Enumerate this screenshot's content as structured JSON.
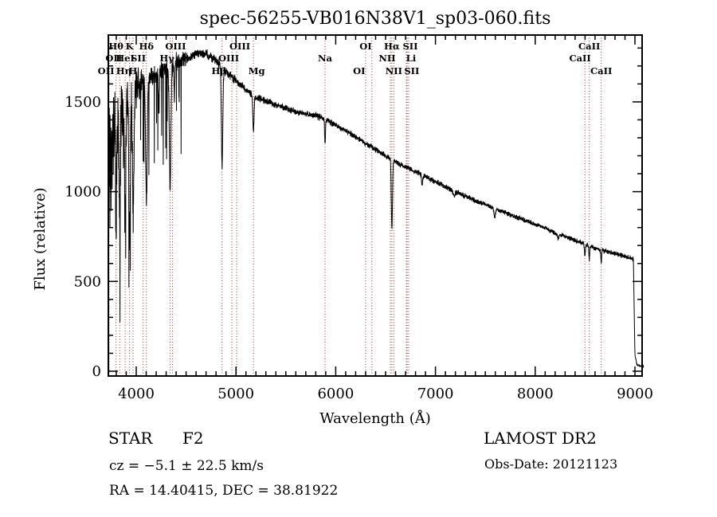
{
  "figure": {
    "background": "#ffffff",
    "frame_color": "#000000",
    "spectrum_color": "#000000",
    "marker_line_color": "#8b3a3a"
  },
  "chart_data": {
    "type": "line",
    "title": "spec-56255-VB016N38V1_sp03-060.fits",
    "xlabel": "Wavelength (Å)",
    "ylabel": "Flux (relative)",
    "xlim": [
      3720,
      9090
    ],
    "ylim": [
      0,
      1900
    ],
    "xticks": [
      4000,
      5000,
      6000,
      7000,
      8000,
      9000
    ],
    "yticks": [
      0,
      500,
      1000,
      1500
    ],
    "x_minor_step": 100,
    "y_minor_step": 100,
    "grid": false,
    "legend": "none",
    "series": [
      {
        "name": "LAMOST spectrum",
        "color": "#000000",
        "noise_seed": 42,
        "continuum_anchors": [
          [
            3722,
            1150
          ],
          [
            3760,
            1330
          ],
          [
            3800,
            1450
          ],
          [
            3850,
            1500
          ],
          [
            3900,
            1530
          ],
          [
            3950,
            1560
          ],
          [
            4000,
            1590
          ],
          [
            4100,
            1630
          ],
          [
            4200,
            1660
          ],
          [
            4300,
            1690
          ],
          [
            4400,
            1720
          ],
          [
            4500,
            1745
          ],
          [
            4600,
            1765
          ],
          [
            4700,
            1770
          ],
          [
            4800,
            1730
          ],
          [
            4900,
            1665
          ],
          [
            5000,
            1620
          ],
          [
            5100,
            1565
          ],
          [
            5200,
            1525
          ],
          [
            5400,
            1485
          ],
          [
            5600,
            1445
          ],
          [
            5800,
            1425
          ],
          [
            5900,
            1400
          ],
          [
            6000,
            1370
          ],
          [
            6200,
            1305
          ],
          [
            6400,
            1235
          ],
          [
            6600,
            1165
          ],
          [
            6800,
            1110
          ],
          [
            7000,
            1055
          ],
          [
            7200,
            1000
          ],
          [
            7400,
            950
          ],
          [
            7600,
            905
          ],
          [
            7800,
            860
          ],
          [
            8000,
            820
          ],
          [
            8200,
            770
          ],
          [
            8400,
            730
          ],
          [
            8600,
            685
          ],
          [
            8800,
            655
          ],
          [
            8985,
            625
          ],
          [
            9000,
            90
          ],
          [
            9020,
            35
          ],
          [
            9090,
            25
          ]
        ],
        "absorption_lines": [
          {
            "wl": 3798,
            "depth": 0.42,
            "sigma": 5
          },
          {
            "wl": 3835,
            "depth": 0.45,
            "sigma": 6
          },
          {
            "wl": 3889,
            "depth": 0.45,
            "sigma": 6
          },
          {
            "wl": 3933,
            "depth": 0.5,
            "sigma": 7
          },
          {
            "wl": 3970,
            "depth": 0.45,
            "sigma": 7
          },
          {
            "wl": 4102,
            "depth": 0.42,
            "sigma": 8
          },
          {
            "wl": 4227,
            "depth": 0.15,
            "sigma": 4
          },
          {
            "wl": 4340,
            "depth": 0.4,
            "sigma": 8
          },
          {
            "wl": 4383,
            "depth": 0.12,
            "sigma": 4
          },
          {
            "wl": 4861,
            "depth": 0.32,
            "sigma": 7
          },
          {
            "wl": 5175,
            "depth": 0.13,
            "sigma": 6
          },
          {
            "wl": 5893,
            "depth": 0.1,
            "sigma": 4
          },
          {
            "wl": 6563,
            "depth": 0.32,
            "sigma": 6
          },
          {
            "wl": 6867,
            "depth": 0.05,
            "sigma": 5
          },
          {
            "wl": 7186,
            "depth": 0.03,
            "sigma": 9
          },
          {
            "wl": 7594,
            "depth": 0.06,
            "sigma": 7
          },
          {
            "wl": 8230,
            "depth": 0.03,
            "sigma": 7
          },
          {
            "wl": 8498,
            "depth": 0.09,
            "sigma": 4
          },
          {
            "wl": 8542,
            "depth": 0.11,
            "sigma": 4
          },
          {
            "wl": 8662,
            "depth": 0.11,
            "sigma": 4
          }
        ]
      }
    ],
    "line_markers": [
      {
        "wl": 3798,
        "label": "Hθ",
        "row": 1,
        "dx": 0
      },
      {
        "wl": 3933,
        "label": "K",
        "row": 1,
        "dx": 0
      },
      {
        "wl": 4102,
        "label": "Hδ",
        "row": 1,
        "dx": 0
      },
      {
        "wl": 4363,
        "label": "OIII",
        "row": 1,
        "dx": 4
      },
      {
        "wl": 5007,
        "label": "OIII",
        "row": 1,
        "dx": 4
      },
      {
        "wl": 6300,
        "label": "OI",
        "row": 1,
        "dx": 0
      },
      {
        "wl": 6563,
        "label": "Hα",
        "row": 1,
        "dx": 0
      },
      {
        "wl": 6716,
        "label": "SII",
        "row": 1,
        "dx": 4
      },
      {
        "wl": 8542,
        "label": "CaII",
        "row": 1,
        "dx": 0
      },
      {
        "wl": 3727,
        "label": "OII",
        "row": 2,
        "dx": 6
      },
      {
        "wl": 3889,
        "label": "HeI",
        "row": 2,
        "dx": 0
      },
      {
        "wl": 4069,
        "label": "SII",
        "row": 2,
        "dx": -6
      },
      {
        "wl": 4340,
        "label": "Hγ",
        "row": 2,
        "dx": -4
      },
      {
        "wl": 4959,
        "label": "OIII",
        "row": 2,
        "dx": -4
      },
      {
        "wl": 5893,
        "label": "Na",
        "row": 2,
        "dx": 0
      },
      {
        "wl": 6548,
        "label": "NII",
        "row": 2,
        "dx": -4
      },
      {
        "wl": 6708,
        "label": "Li",
        "row": 2,
        "dx": 6
      },
      {
        "wl": 8498,
        "label": "CaII",
        "row": 2,
        "dx": -6
      },
      {
        "wl": 3729,
        "label": "OII",
        "row": 3,
        "dx": -4
      },
      {
        "wl": 3835,
        "label": "Hη",
        "row": 3,
        "dx": 5
      },
      {
        "wl": 3968,
        "label": "H",
        "row": 3,
        "dx": 0
      },
      {
        "wl": 4861,
        "label": "Hβ",
        "row": 3,
        "dx": -4
      },
      {
        "wl": 5175,
        "label": "Mg",
        "row": 3,
        "dx": 4
      },
      {
        "wl": 6363,
        "label": "OI",
        "row": 3,
        "dx": -16
      },
      {
        "wl": 6583,
        "label": "NII",
        "row": 3,
        "dx": 0
      },
      {
        "wl": 6731,
        "label": "SII",
        "row": 3,
        "dx": 4
      },
      {
        "wl": 8662,
        "label": "CaII",
        "row": 3,
        "dx": 0
      }
    ]
  },
  "annotations": {
    "class_label": "STAR",
    "subclass_label": "F2",
    "cz_text": "cz = −5.1 ± 22.5 km/s",
    "radec_text": "RA =  14.40415, DEC =  38.81922",
    "survey_text": "LAMOST DR2",
    "obsdate_text": "Obs-Date: 20121123"
  }
}
